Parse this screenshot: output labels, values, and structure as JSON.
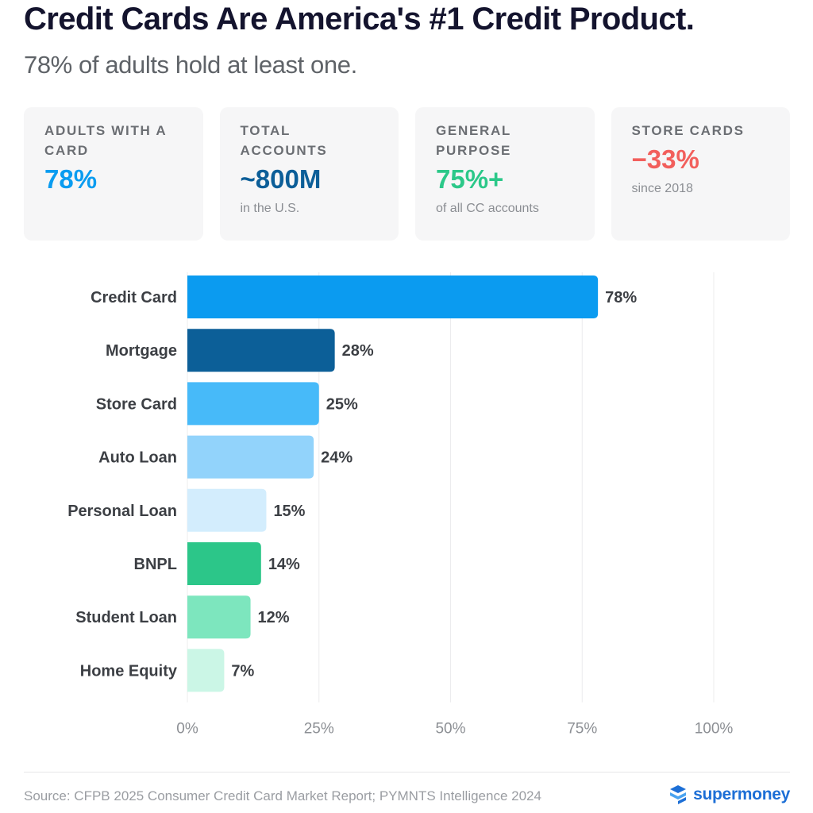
{
  "header": {
    "title": "Credit Cards Are America's #1 Credit Product.",
    "subtitle": "78% of adults hold at least one."
  },
  "stats": [
    {
      "label": "ADULTS WITH A CARD",
      "value": "78%",
      "note": "",
      "color": "#0a9cf0"
    },
    {
      "label": "TOTAL ACCOUNTS",
      "value": "~800M",
      "note": "in the U.S.",
      "color": "#0c5e98"
    },
    {
      "label": "GENERAL PURPOSE",
      "value": "75%+",
      "note": "of all CC accounts",
      "color": "#2cc889"
    },
    {
      "label": "STORE CARDS",
      "value": "−33%",
      "note": "since 2018",
      "color": "#f25f5c"
    }
  ],
  "chart_data": {
    "type": "bar",
    "orientation": "horizontal",
    "categories": [
      "Credit Card",
      "Mortgage",
      "Store Card",
      "Auto Loan",
      "Personal Loan",
      "BNPL",
      "Student Loan",
      "Home Equity"
    ],
    "values": [
      78,
      28,
      25,
      24,
      15,
      14,
      12,
      7
    ],
    "value_labels": [
      "78%",
      "28%",
      "25%",
      "24%",
      "15%",
      "14%",
      "12%",
      "7%"
    ],
    "bar_colors": [
      "#0b9bf0",
      "#0c5f98",
      "#47baf9",
      "#92d3fb",
      "#d3edfd",
      "#2cc689",
      "#7de6be",
      "#cbf6e6"
    ],
    "xlim": [
      0,
      100
    ],
    "xticks": [
      0,
      25,
      50,
      75,
      100
    ],
    "xtick_labels": [
      "0%",
      "25%",
      "50%",
      "75%",
      "100%"
    ],
    "grid": true,
    "legend": "none"
  },
  "footer": {
    "source": "Source: CFPB 2025 Consumer Credit Card Market Report; PYMNTS Intelligence 2024",
    "brand": "supermoney",
    "logo_icon": "supermoney-logo-icon"
  }
}
